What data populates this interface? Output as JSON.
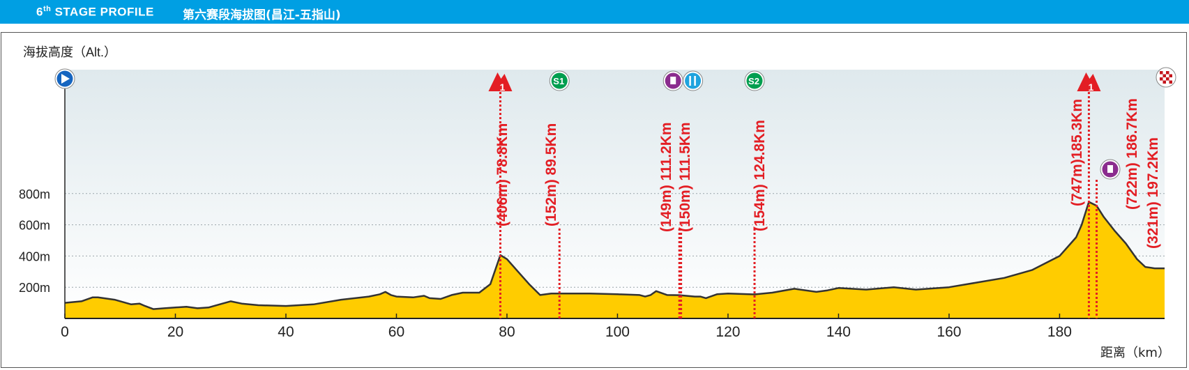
{
  "header": {
    "stage_num": "6",
    "stage_sup": "th",
    "stage_label": "STAGE PROFILE",
    "subtitle": "第六赛段海拔图(昌江-五指山)",
    "bg_color": "#009fe3"
  },
  "chart_data": {
    "type": "area",
    "ylabel": "海拔高度（Alt.）",
    "xlabel": "距离（km）",
    "xlim": [
      0,
      199
    ],
    "x_ticks": [
      0,
      20,
      40,
      60,
      80,
      100,
      120,
      140,
      160,
      180
    ],
    "y_ticks": [
      {
        "value": 200,
        "label": "200m"
      },
      {
        "value": 400,
        "label": "400m"
      },
      {
        "value": 600,
        "label": "600m"
      },
      {
        "value": 800,
        "label": "800m"
      }
    ],
    "grid": "horizontal-dotted",
    "fill_color": "#ffcc00",
    "line_color": "#333333",
    "series": [
      {
        "x": [
          0,
          3,
          5,
          6,
          9,
          12,
          13.5,
          14.5,
          16,
          18,
          20,
          22,
          24,
          26,
          28,
          30,
          32,
          35,
          40,
          45,
          50,
          55,
          57,
          58,
          59,
          60,
          63,
          65,
          66,
          68,
          70,
          72,
          75,
          77,
          78.8,
          80,
          82,
          84,
          86,
          88,
          95,
          100,
          104,
          105,
          106,
          107,
          109,
          111.2,
          114,
          115,
          116,
          118,
          120,
          124.8,
          128,
          132,
          136,
          138,
          140,
          145,
          150,
          154,
          160,
          165,
          170,
          175,
          180,
          182,
          183,
          184,
          185.3,
          186.7,
          188,
          190,
          192,
          194,
          195.5,
          197.2,
          199
        ],
        "y": [
          100,
          110,
          135,
          135,
          120,
          90,
          95,
          80,
          60,
          65,
          70,
          75,
          65,
          70,
          90,
          110,
          95,
          85,
          80,
          90,
          120,
          140,
          155,
          170,
          150,
          140,
          135,
          145,
          130,
          125,
          150,
          165,
          165,
          220,
          406,
          380,
          300,
          220,
          150,
          160,
          160,
          155,
          150,
          140,
          150,
          175,
          150,
          149,
          140,
          140,
          130,
          155,
          160,
          154,
          165,
          190,
          170,
          180,
          195,
          185,
          200,
          185,
          200,
          230,
          260,
          310,
          400,
          480,
          520,
          600,
          747,
          722,
          650,
          560,
          480,
          380,
          330,
          321,
          321
        ]
      }
    ],
    "markers": [
      {
        "km": 0,
        "type": "start",
        "icon": "start-icon",
        "label": ""
      },
      {
        "km": 78.8,
        "type": "kom",
        "icon": "climb-icon",
        "rank": "1",
        "label": "(406m) 78.8Km"
      },
      {
        "km": 89.5,
        "type": "sprint",
        "icon": "sprint-icon",
        "badge": "S1",
        "label": "(152m) 89.5Km"
      },
      {
        "km": 111.2,
        "type": "feed",
        "icon": "feed-zone-icon",
        "label": "(149m) 111.2Km"
      },
      {
        "km": 111.5,
        "type": "water",
        "icon": "water-icon",
        "label": "(150m) 111.5Km"
      },
      {
        "km": 124.8,
        "type": "sprint",
        "icon": "sprint-icon",
        "badge": "S2",
        "label": "(154m) 124.8Km"
      },
      {
        "km": 185.3,
        "type": "kom",
        "icon": "climb-icon",
        "rank": "1",
        "label": "(747m)185.3Km"
      },
      {
        "km": 186.7,
        "type": "feed",
        "icon": "feed-zone-icon",
        "label": "(722m) 186.7Km"
      },
      {
        "km": 197.2,
        "type": "finish",
        "icon": "finish-icon",
        "label": "(321m) 197.2Km"
      }
    ],
    "colors": {
      "marker_red": "#e31e24",
      "sprint_green": "#009e4f",
      "feed_purple": "#8b2c8e",
      "water_blue": "#1fa3de",
      "start_blue": "#1565c0"
    }
  }
}
